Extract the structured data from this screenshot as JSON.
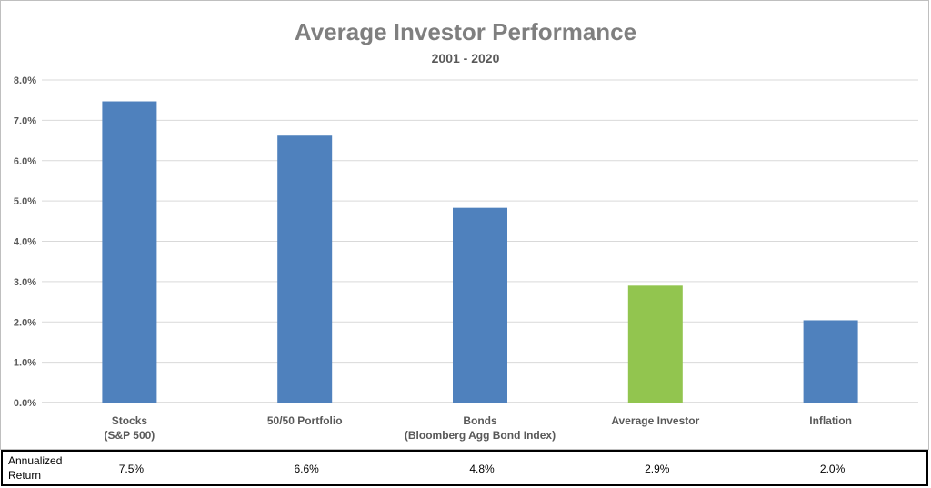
{
  "chart_data": {
    "type": "bar",
    "title": "Average Investor Performance",
    "subtitle": "2001 - 2020",
    "categories": [
      [
        "Stocks",
        "(S&P 500)"
      ],
      [
        "50/50 Portfolio"
      ],
      [
        "Bonds",
        "(Bloomberg Agg Bond Index)"
      ],
      [
        "Average Investor"
      ],
      [
        "Inflation"
      ]
    ],
    "values": [
      7.47,
      6.62,
      4.83,
      2.9,
      2.04
    ],
    "bar_colors": [
      "#4f81bd",
      "#4f81bd",
      "#4f81bd",
      "#92c54f",
      "#4f81bd"
    ],
    "ylim": [
      0,
      8
    ],
    "yticks": [
      "0.0%",
      "1.0%",
      "2.0%",
      "3.0%",
      "4.0%",
      "5.0%",
      "6.0%",
      "7.0%",
      "8.0%"
    ],
    "grid": true,
    "xlabel": "",
    "ylabel": ""
  },
  "table": {
    "row_header": "Annualized Return",
    "cells": [
      "7.5%",
      "6.6%",
      "4.8%",
      "2.9%",
      "2.0%"
    ]
  }
}
